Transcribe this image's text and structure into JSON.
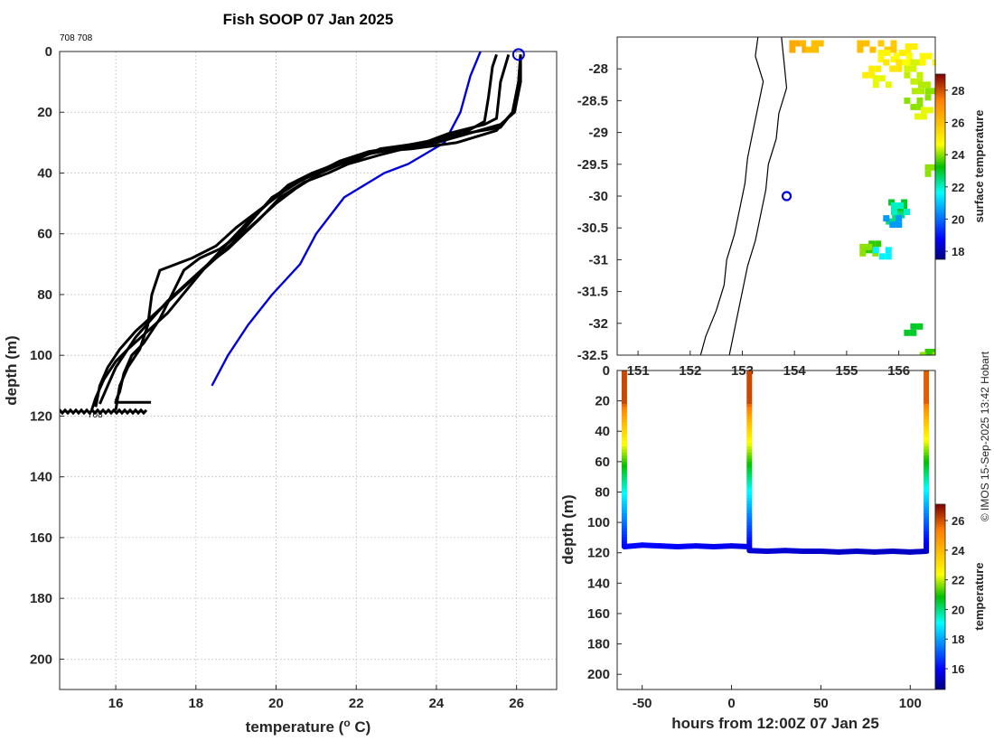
{
  "chart_data": [
    {
      "type": "line",
      "title": "Fish SOOP 07 Jan 2025",
      "xlabel": "temperature (",
      "xlabel_sup": "o",
      "xlabel_end": " C)",
      "ylabel": "depth (m)",
      "xlim": [
        14.6,
        27.0
      ],
      "ylim": [
        0,
        210
      ],
      "yreversed": true,
      "grid": true,
      "xticks": [
        16,
        18,
        20,
        22,
        24,
        26
      ],
      "yticks": [
        0,
        20,
        40,
        60,
        80,
        100,
        120,
        140,
        160,
        180,
        200
      ],
      "top_annotation": "708 708",
      "bottom_annotation": "708",
      "marker_temperature": 26.05,
      "marker_depth": 1,
      "series": [
        {
          "color": "#0000dd",
          "points": [
            [
              25.1,
              0
            ],
            [
              24.85,
              8
            ],
            [
              24.6,
              20
            ],
            [
              24.2,
              30
            ],
            [
              23.3,
              37
            ],
            [
              22.7,
              40
            ],
            [
              21.7,
              48
            ],
            [
              21.0,
              60
            ],
            [
              20.6,
              70
            ],
            [
              19.9,
              80
            ],
            [
              19.3,
              90
            ],
            [
              18.8,
              100
            ],
            [
              18.4,
              110
            ]
          ]
        },
        {
          "color": "#000000",
          "points": [
            [
              26.1,
              1
            ],
            [
              26.05,
              10
            ],
            [
              25.9,
              20
            ],
            [
              25.6,
              25
            ],
            [
              24.7,
              27
            ],
            [
              23.7,
              30
            ],
            [
              22.6,
              32
            ],
            [
              22.1,
              35
            ],
            [
              21.4,
              38
            ],
            [
              20.8,
              41
            ],
            [
              20.2,
              46
            ],
            [
              19.6,
              52
            ],
            [
              19.0,
              58
            ],
            [
              18.5,
              64
            ],
            [
              17.9,
              68
            ],
            [
              17.1,
              72
            ],
            [
              16.9,
              80
            ],
            [
              16.8,
              90
            ],
            [
              16.6,
              98
            ],
            [
              16.3,
              104
            ],
            [
              16.1,
              110
            ],
            [
              16.0,
              118
            ]
          ]
        },
        {
          "color": "#000000",
          "points": [
            [
              25.5,
              1
            ],
            [
              25.4,
              5
            ],
            [
              25.3,
              15
            ],
            [
              25.2,
              23
            ],
            [
              24.8,
              26
            ],
            [
              24.0,
              29
            ],
            [
              23.2,
              31
            ],
            [
              22.3,
              33
            ],
            [
              21.6,
              36
            ],
            [
              21.0,
              40
            ],
            [
              20.4,
              44
            ],
            [
              19.9,
              48
            ],
            [
              19.5,
              54
            ],
            [
              19.1,
              60
            ],
            [
              18.6,
              65
            ],
            [
              18.1,
              68
            ],
            [
              17.7,
              72
            ],
            [
              17.4,
              80
            ],
            [
              17.1,
              88
            ],
            [
              16.7,
              96
            ],
            [
              16.4,
              100
            ],
            [
              16.2,
              106
            ],
            [
              16.1,
              112
            ],
            [
              16.0,
              115
            ]
          ]
        },
        {
          "color": "#000000",
          "points": [
            [
              25.8,
              1
            ],
            [
              25.6,
              10
            ],
            [
              25.5,
              22
            ],
            [
              25.2,
              24
            ],
            [
              24.3,
              27
            ],
            [
              23.5,
              31
            ],
            [
              22.6,
              34
            ],
            [
              21.8,
              37
            ],
            [
              21.3,
              40
            ],
            [
              20.7,
              43
            ],
            [
              20.1,
              48
            ],
            [
              19.6,
              55
            ],
            [
              19.2,
              60
            ],
            [
              18.8,
              65
            ],
            [
              18.3,
              70
            ],
            [
              17.8,
              76
            ],
            [
              17.3,
              82
            ],
            [
              16.9,
              88
            ],
            [
              16.5,
              94
            ],
            [
              16.2,
              100
            ],
            [
              16.0,
              104
            ],
            [
              15.8,
              110
            ],
            [
              15.6,
              116
            ]
          ]
        },
        {
          "color": "#000000",
          "points": [
            [
              26.1,
              1
            ],
            [
              26.1,
              10
            ],
            [
              25.95,
              20
            ],
            [
              25.6,
              24
            ],
            [
              24.8,
              27
            ],
            [
              24.0,
              30
            ],
            [
              23.0,
              32
            ],
            [
              22.2,
              34
            ],
            [
              21.5,
              37
            ],
            [
              20.9,
              40
            ],
            [
              20.3,
              44
            ],
            [
              19.8,
              50
            ],
            [
              19.3,
              56
            ],
            [
              18.8,
              63
            ],
            [
              18.3,
              70
            ],
            [
              17.8,
              78
            ],
            [
              17.3,
              86
            ],
            [
              16.8,
              92
            ],
            [
              16.3,
              98
            ],
            [
              16.0,
              102
            ],
            [
              15.7,
              108
            ],
            [
              15.5,
              114
            ],
            [
              15.4,
              118
            ]
          ]
        },
        {
          "color": "#000000",
          "points": [
            [
              26.1,
              1
            ],
            [
              26.05,
              10
            ],
            [
              25.9,
              20
            ],
            [
              25.5,
              26
            ],
            [
              24.5,
              30
            ],
            [
              23.4,
              32
            ],
            [
              22.5,
              33
            ],
            [
              21.8,
              36
            ],
            [
              21.1,
              40
            ],
            [
              20.5,
              45
            ],
            [
              20.0,
              50
            ],
            [
              19.5,
              56
            ],
            [
              19.0,
              62
            ],
            [
              18.5,
              68
            ],
            [
              18.0,
              74
            ],
            [
              17.5,
              80
            ],
            [
              17.0,
              86
            ],
            [
              16.5,
              92
            ],
            [
              16.1,
              98
            ],
            [
              15.8,
              104
            ],
            [
              15.6,
              110
            ],
            [
              15.5,
              117
            ]
          ]
        }
      ]
    },
    {
      "type": "heatmap",
      "colorbar_label": "surface temperature",
      "colorbar_ticks": [
        18,
        20,
        22,
        24,
        26,
        28
      ],
      "colorbar_range": [
        17.5,
        29.0
      ],
      "xlim": [
        150.6,
        156.7
      ],
      "ylim": [
        -32.5,
        -27.5
      ],
      "xticks": [
        151,
        152,
        153,
        154,
        155,
        156
      ],
      "yticks": [
        -28,
        -28.5,
        -29,
        -29.5,
        -30,
        -30.5,
        -31,
        -31.5,
        -32,
        -32.5
      ],
      "ytick_labels": [
        "-28",
        "-28.5",
        "-29",
        "-29.5",
        "-30",
        "-30.5",
        "-31",
        "-31.5",
        "-32",
        "-32.5"
      ],
      "marker": [
        153.85,
        -30.0
      ],
      "coastline": [
        [
          153.3,
          -27.5
        ],
        [
          153.25,
          -27.8
        ],
        [
          153.4,
          -28.2
        ],
        [
          153.3,
          -28.6
        ],
        [
          153.2,
          -29.0
        ],
        [
          153.1,
          -29.4
        ],
        [
          153.05,
          -29.8
        ],
        [
          152.95,
          -30.2
        ],
        [
          152.85,
          -30.6
        ],
        [
          152.7,
          -31.0
        ],
        [
          152.65,
          -31.4
        ],
        [
          152.5,
          -31.8
        ],
        [
          152.3,
          -32.2
        ],
        [
          152.2,
          -32.5
        ]
      ],
      "shelf_edge": [
        [
          153.75,
          -27.5
        ],
        [
          153.8,
          -27.9
        ],
        [
          153.85,
          -28.3
        ],
        [
          153.7,
          -28.7
        ],
        [
          153.65,
          -29.1
        ],
        [
          153.5,
          -29.5
        ],
        [
          153.45,
          -29.9
        ],
        [
          153.35,
          -30.3
        ],
        [
          153.25,
          -30.7
        ],
        [
          153.1,
          -31.1
        ],
        [
          153.0,
          -31.5
        ],
        [
          152.9,
          -31.9
        ],
        [
          152.8,
          -32.3
        ],
        [
          152.75,
          -32.5
        ]
      ],
      "sst_pixels": [
        [
          153.9,
          -27.55,
          26.5
        ],
        [
          154.1,
          -27.55,
          26.2
        ],
        [
          154.2,
          -27.55,
          26.0
        ],
        [
          155.2,
          -27.55,
          26.0
        ],
        [
          155.6,
          -27.55,
          25.8
        ],
        [
          156.0,
          -27.6,
          25.0
        ],
        [
          155.6,
          -27.7,
          24.8
        ],
        [
          155.9,
          -27.75,
          24.6
        ],
        [
          156.1,
          -27.85,
          24.4
        ],
        [
          156.4,
          -27.75,
          24.8
        ],
        [
          155.7,
          -27.85,
          25.2
        ],
        [
          155.3,
          -27.95,
          25.0
        ],
        [
          155.5,
          -28.1,
          24.5
        ],
        [
          156.1,
          -28.05,
          24.3
        ],
        [
          156.25,
          -28.2,
          24.2
        ],
        [
          156.5,
          -28.3,
          24.0
        ],
        [
          156.1,
          -28.45,
          24.0
        ],
        [
          156.3,
          -28.6,
          24.5
        ],
        [
          156.5,
          -29.5,
          24.0
        ],
        [
          155.8,
          -30.05,
          23.0
        ],
        [
          155.75,
          -30.25,
          22.5
        ],
        [
          155.85,
          -30.1,
          22.0
        ],
        [
          155.7,
          -30.3,
          20.5
        ],
        [
          155.3,
          -30.7,
          23.5
        ],
        [
          155.25,
          -30.75,
          24.0
        ],
        [
          155.5,
          -30.8,
          21.5
        ],
        [
          156.1,
          -32.0,
          23.0
        ],
        [
          156.5,
          -32.4,
          23.5
        ],
        [
          156.4,
          -32.45,
          24.0
        ]
      ]
    },
    {
      "type": "scatter",
      "xlabel": "hours from 12:00Z 07 Jan 25",
      "ylabel": "depth (m)",
      "xlim": [
        -64,
        114
      ],
      "ylim": [
        0,
        210
      ],
      "yreversed": true,
      "xticks": [
        -50,
        0,
        50,
        100
      ],
      "yticks": [
        0,
        20,
        40,
        60,
        80,
        100,
        120,
        140,
        160,
        180,
        200
      ],
      "colorbar_label": "temperature",
      "colorbar_ticks": [
        16,
        18,
        20,
        22,
        24,
        26
      ],
      "colorbar_range": [
        14.6,
        27.1
      ],
      "casts": [
        {
          "time": -60,
          "max_depth": 115,
          "surface_temp": 26.1,
          "bottom_temp": 16.0
        },
        {
          "time": 10,
          "max_depth": 116,
          "surface_temp": 26.1,
          "bottom_temp": 15.7
        },
        {
          "time": 109,
          "max_depth": 119,
          "surface_temp": 25.8,
          "bottom_temp": 15.4
        }
      ],
      "tow_tracks": [
        {
          "points": [
            [
              -60,
              116,
              16.0
            ],
            [
              -50,
              115,
              16.1
            ],
            [
              -40,
              115.5,
              16.0
            ],
            [
              -30,
              116,
              15.9
            ],
            [
              -20,
              115.5,
              15.9
            ],
            [
              -10,
              116,
              15.8
            ],
            [
              0,
              115.5,
              15.8
            ],
            [
              10,
              116,
              15.7
            ]
          ]
        },
        {
          "points": [
            [
              10,
              118.5,
              15.6
            ],
            [
              20,
              119,
              15.5
            ],
            [
              30,
              118.5,
              15.5
            ],
            [
              40,
              119,
              15.5
            ],
            [
              50,
              119,
              15.4
            ],
            [
              60,
              119.5,
              15.4
            ],
            [
              70,
              119,
              15.4
            ],
            [
              80,
              119.5,
              15.3
            ],
            [
              90,
              119,
              15.4
            ],
            [
              100,
              119.5,
              15.3
            ],
            [
              109,
              119,
              15.4
            ]
          ]
        }
      ]
    }
  ],
  "credit": "© IMOS 15-Sep-2025 13:42 Hobart"
}
